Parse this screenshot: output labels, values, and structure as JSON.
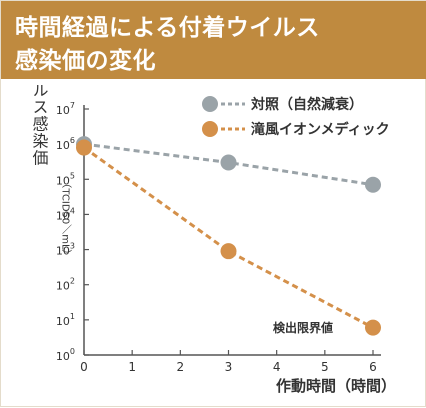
{
  "header": {
    "title_line1": "時間経過による付着ウイルス",
    "title_line2": "感染価の変化",
    "bg_color": "#bf8a3f"
  },
  "chart_data": {
    "type": "line",
    "title": "時間経過による付着ウイルス感染価の変化",
    "xlabel": "作動時間（時間）",
    "ylabel": "ウイルス感染価",
    "ylabel_unit": "（TCID50／mL）",
    "x_ticks": [
      "0",
      "1",
      "2",
      "3",
      "4",
      "5",
      "6"
    ],
    "y_ticks": [
      {
        "base": "10",
        "exp": "0"
      },
      {
        "base": "10",
        "exp": "1"
      },
      {
        "base": "10",
        "exp": "2"
      },
      {
        "base": "10",
        "exp": "3"
      },
      {
        "base": "10",
        "exp": "4"
      },
      {
        "base": "10",
        "exp": "5"
      },
      {
        "base": "10",
        "exp": "6"
      },
      {
        "base": "10",
        "exp": "7"
      }
    ],
    "xlim": [
      0,
      6
    ],
    "ylim": [
      1,
      10000000
    ],
    "y_scale": "log",
    "grid": false,
    "legend_position": "top-right",
    "series": [
      {
        "name": "対照（自然減衰）",
        "color": "#9aa3a8",
        "x": [
          0,
          3,
          6
        ],
        "y": [
          1000000,
          300000,
          70000
        ]
      },
      {
        "name": "滝風イオンメディック",
        "color": "#d4904a",
        "x": [
          0,
          3,
          6
        ],
        "y": [
          800000,
          900,
          6
        ]
      }
    ],
    "annotations": [
      {
        "text": "検出限界値"
      }
    ]
  }
}
